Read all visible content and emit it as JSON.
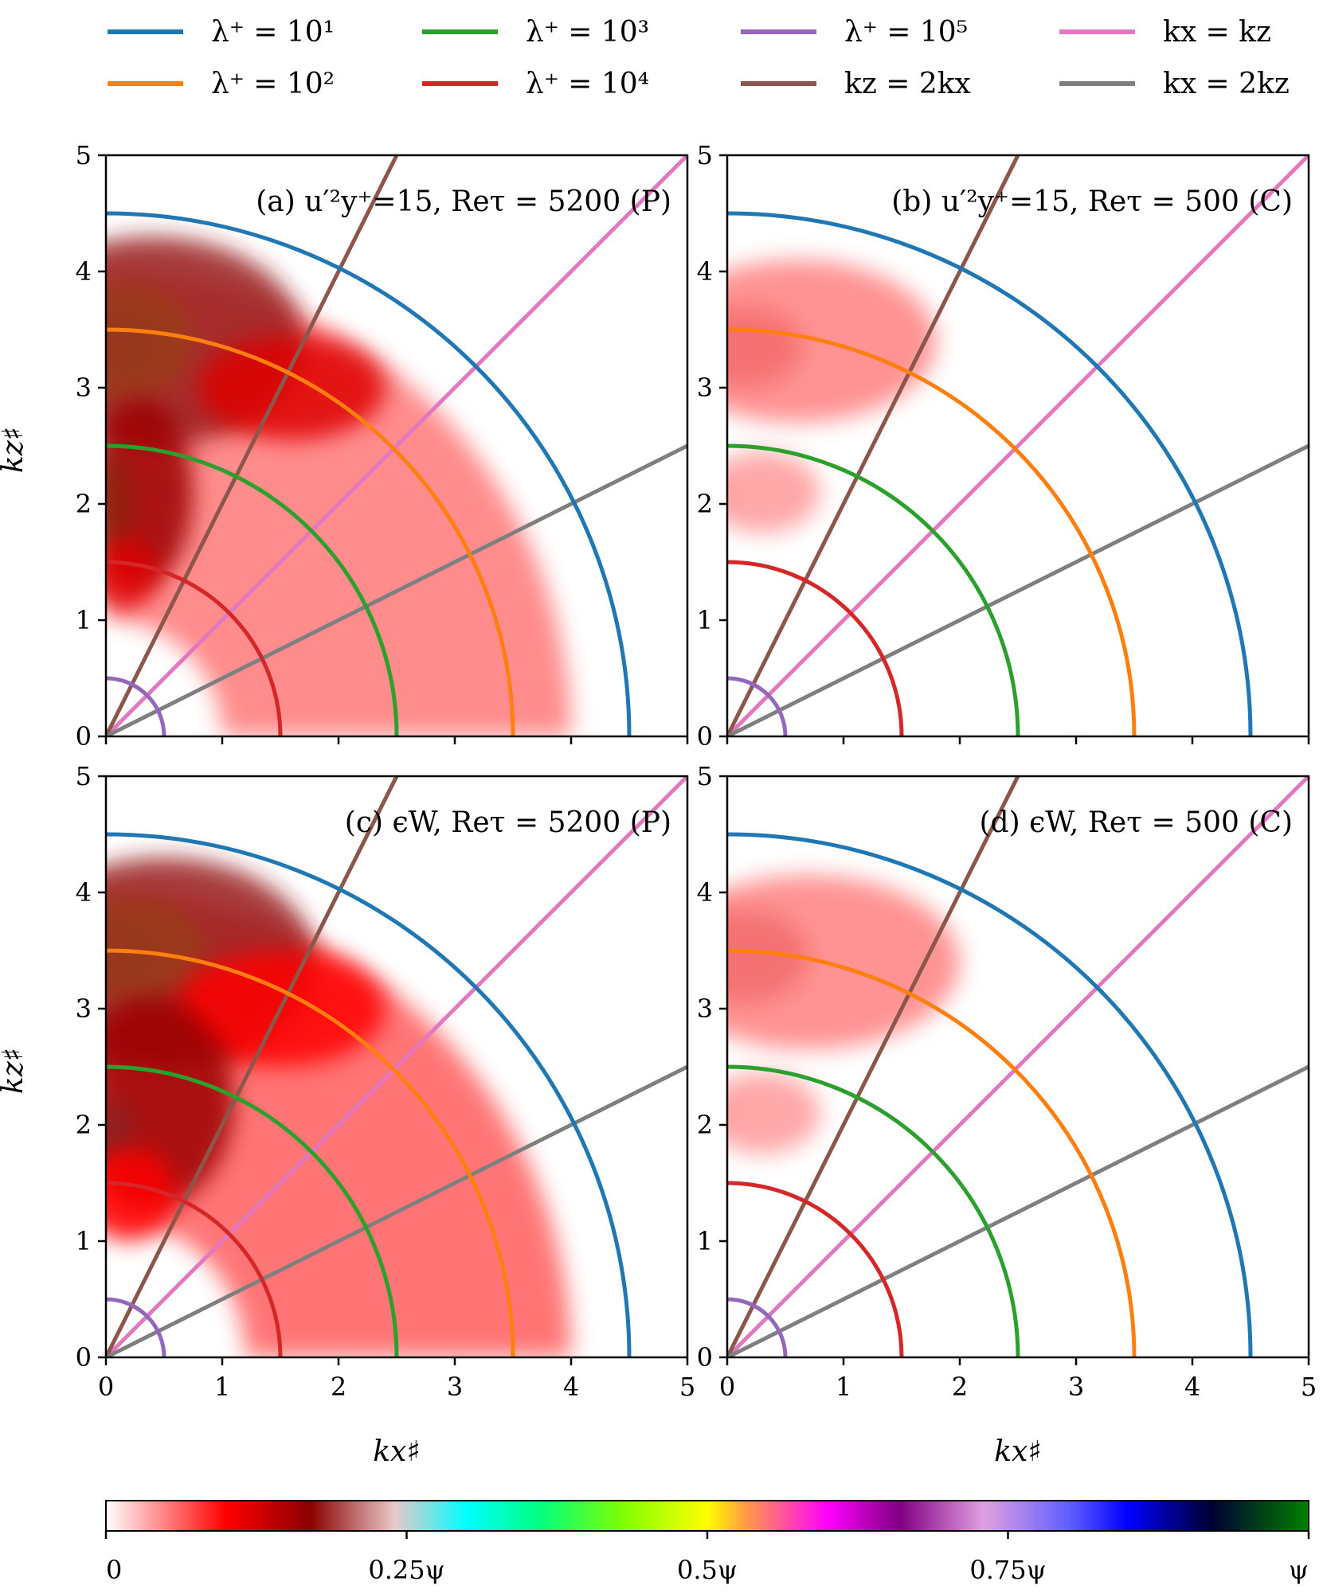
{
  "chart_data": {
    "type": "heatmap",
    "legend": {
      "placement": "top",
      "entries": [
        {
          "label": "λ⁺ = 10¹",
          "color": "#1f77b4"
        },
        {
          "label": "λ⁺ = 10³",
          "color": "#2ca02c"
        },
        {
          "label": "λ⁺ = 10⁵",
          "color": "#9467bd"
        },
        {
          "label": "kx = kz",
          "color": "#e377c2"
        },
        {
          "label": "λ⁺ = 10²",
          "color": "#ff7f0e"
        },
        {
          "label": "λ⁺ = 10⁴",
          "color": "#d62728"
        },
        {
          "label": "kz = 2kx",
          "color": "#8c564b"
        },
        {
          "label": "kx = 2kz",
          "color": "#7f7f7f"
        }
      ]
    },
    "overlay_arcs": [
      {
        "name": "λ⁺ = 10¹",
        "radius": 4.5,
        "color": "#1f77b4"
      },
      {
        "name": "λ⁺ = 10²",
        "radius": 3.5,
        "color": "#ff7f0e"
      },
      {
        "name": "λ⁺ = 10³",
        "radius": 2.5,
        "color": "#2ca02c"
      },
      {
        "name": "λ⁺ = 10⁴",
        "radius": 1.5,
        "color": "#d62728"
      },
      {
        "name": "λ⁺ = 10⁵",
        "radius": 0.5,
        "color": "#9467bd"
      }
    ],
    "overlay_lines": [
      {
        "name": "kx = kz",
        "slope": 1,
        "color": "#e377c2"
      },
      {
        "name": "kz = 2kx",
        "slope": 2,
        "color": "#8c564b"
      },
      {
        "name": "kx = 2kz",
        "slope": 0.5,
        "color": "#7f7f7f"
      }
    ],
    "x_axis": {
      "label": "kx♯",
      "range": [
        0,
        5
      ],
      "ticks": [
        "0",
        "1",
        "2",
        "3",
        "4",
        "5"
      ]
    },
    "y_axis": {
      "label": "kz♯",
      "range": [
        0,
        5
      ],
      "ticks": [
        "0",
        "1",
        "2",
        "3",
        "4",
        "5"
      ]
    },
    "grid": false,
    "panels": [
      {
        "id": "a",
        "label": "(a) u′²y⁺=15, Reτ = 5200 (P)",
        "blobs": [
          {
            "x": 0.1,
            "y": 3.4,
            "rx": 0.35,
            "ry": 0.28,
            "level": 0.85
          },
          {
            "x": 0.15,
            "y": 3.4,
            "rx": 0.6,
            "ry": 0.5,
            "level": 0.45
          },
          {
            "x": 0.4,
            "y": 3.4,
            "rx": 1.3,
            "ry": 0.9,
            "level": 0.18
          },
          {
            "x": 1.6,
            "y": 3.0,
            "rx": 0.8,
            "ry": 0.45,
            "level": 0.12
          },
          {
            "x": 0.08,
            "y": 2.0,
            "rx": 0.12,
            "ry": 0.45,
            "level": 0.38
          },
          {
            "x": 0.3,
            "y": 2.1,
            "rx": 0.45,
            "ry": 0.8,
            "level": 0.16
          },
          {
            "x": 0.15,
            "y": 1.4,
            "rx": 0.3,
            "ry": 0.3,
            "level": 0.12
          }
        ],
        "ring": {
          "r_inner": 1.0,
          "r_outer": 4.0,
          "level": 0.05
        }
      },
      {
        "id": "b",
        "label": "(b) u′²y⁺=15, Reτ = 500 (C)",
        "blobs": [
          {
            "x": 0.15,
            "y": 3.35,
            "rx": 0.5,
            "ry": 0.35,
            "level": 0.14
          },
          {
            "x": 0.6,
            "y": 3.4,
            "rx": 1.2,
            "ry": 0.7,
            "level": 0.05
          },
          {
            "x": 0.05,
            "y": 2.08,
            "rx": 0.05,
            "ry": 0.08,
            "level": 0.55
          },
          {
            "x": 0.3,
            "y": 2.1,
            "rx": 0.5,
            "ry": 0.35,
            "level": 0.04
          }
        ]
      },
      {
        "id": "c",
        "label": "(c) ϵW, Reτ = 5200 (P)",
        "blobs": [
          {
            "x": 0.1,
            "y": 3.5,
            "rx": 0.35,
            "ry": 0.25,
            "level": 0.85
          },
          {
            "x": 0.2,
            "y": 3.5,
            "rx": 0.65,
            "ry": 0.45,
            "level": 0.45
          },
          {
            "x": 0.5,
            "y": 3.4,
            "rx": 1.3,
            "ry": 0.9,
            "level": 0.18
          },
          {
            "x": 1.5,
            "y": 3.0,
            "rx": 0.9,
            "ry": 0.5,
            "level": 0.1
          },
          {
            "x": 0.1,
            "y": 1.9,
            "rx": 0.12,
            "ry": 0.3,
            "level": 0.3
          },
          {
            "x": 0.4,
            "y": 2.2,
            "rx": 0.7,
            "ry": 0.9,
            "level": 0.16
          },
          {
            "x": 0.2,
            "y": 1.4,
            "rx": 0.4,
            "ry": 0.4,
            "level": 0.1
          }
        ],
        "ring": {
          "r_inner": 1.2,
          "r_outer": 4.0,
          "level": 0.06
        }
      },
      {
        "id": "d",
        "label": "(d) ϵW, Reτ = 500 (C)",
        "blobs": [
          {
            "x": 0.15,
            "y": 3.45,
            "rx": 0.55,
            "ry": 0.4,
            "level": 0.15
          },
          {
            "x": 0.7,
            "y": 3.4,
            "rx": 1.3,
            "ry": 0.75,
            "level": 0.05
          },
          {
            "x": 0.05,
            "y": 2.08,
            "rx": 0.05,
            "ry": 0.08,
            "level": 0.55
          },
          {
            "x": 0.3,
            "y": 2.1,
            "rx": 0.5,
            "ry": 0.35,
            "level": 0.04
          }
        ]
      }
    ],
    "colorbar": {
      "tick_labels": [
        "0",
        "0.25ψ",
        "0.5ψ",
        "0.75ψ",
        "ψ"
      ],
      "tick_values": [
        0,
        0.25,
        0.5,
        0.75,
        1
      ],
      "stops": [
        {
          "v": 0.0,
          "color": "#ffffff"
        },
        {
          "v": 0.1,
          "color": "#ff0000"
        },
        {
          "v": 0.17,
          "color": "#8b0000"
        },
        {
          "v": 0.24,
          "color": "#e8c8c8"
        },
        {
          "v": 0.3,
          "color": "#00ffff"
        },
        {
          "v": 0.36,
          "color": "#00ff80"
        },
        {
          "v": 0.43,
          "color": "#80ff00"
        },
        {
          "v": 0.5,
          "color": "#ffff00"
        },
        {
          "v": 0.53,
          "color": "#ffa040"
        },
        {
          "v": 0.6,
          "color": "#ff00ff"
        },
        {
          "v": 0.66,
          "color": "#800080"
        },
        {
          "v": 0.73,
          "color": "#e0a0e0"
        },
        {
          "v": 0.8,
          "color": "#6060ff"
        },
        {
          "v": 0.85,
          "color": "#0000ff"
        },
        {
          "v": 0.92,
          "color": "#000030"
        },
        {
          "v": 1.0,
          "color": "#008000"
        }
      ]
    }
  }
}
